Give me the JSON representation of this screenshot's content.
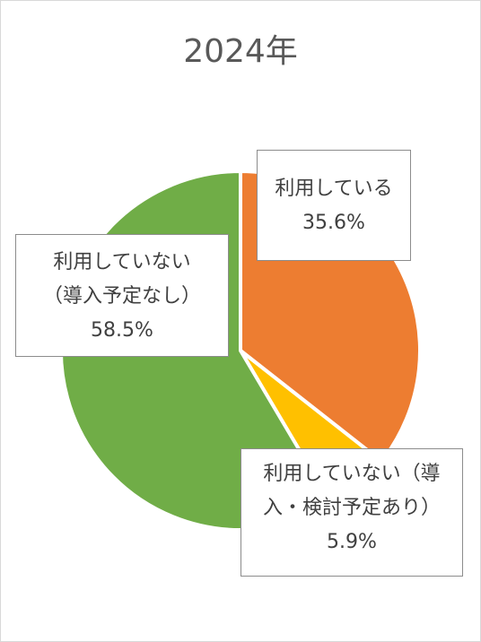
{
  "chart_data": {
    "type": "pie",
    "title": "2024年",
    "slices": [
      {
        "label_lines": [
          "利用している"
        ],
        "value_label": "35.6%",
        "value": 35.6,
        "color": "#ED7D31"
      },
      {
        "label_lines": [
          "利用していない（導",
          "入・検討予定あり）"
        ],
        "value_label": "5.9%",
        "value": 5.9,
        "color": "#FFC000"
      },
      {
        "label_lines": [
          "利用していない",
          "（導入予定なし）"
        ],
        "value_label": "58.5%",
        "value": 58.5,
        "color": "#70AD47"
      }
    ],
    "legend": "none",
    "start_angle": "12 o'clock",
    "direction": "clockwise"
  }
}
